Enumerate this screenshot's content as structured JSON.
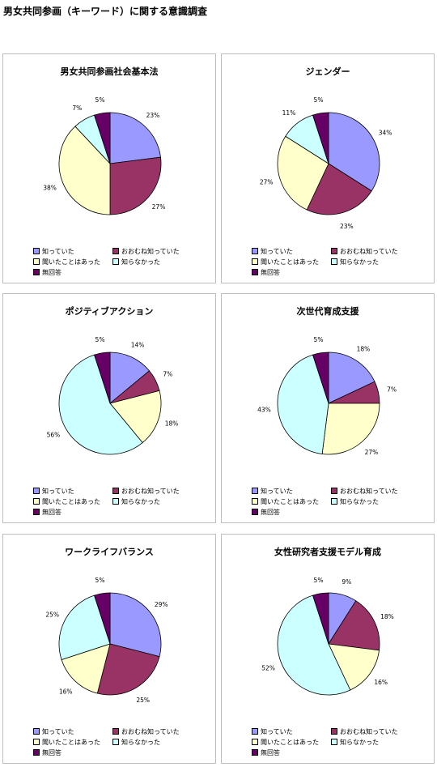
{
  "page": {
    "title": "男女共同参画（キーワード）に関する意識調査"
  },
  "legend_labels": [
    "知っていた",
    "おおむね知っていた",
    "聞いたことはあった",
    "知らなかった",
    "無回答"
  ],
  "colors": [
    "#9999ff",
    "#993366",
    "#ffffcc",
    "#ccffff",
    "#660066"
  ],
  "chart_data": [
    {
      "type": "pie",
      "title": "男女共同参画社会基本法",
      "categories": [
        "知っていた",
        "おおむね知っていた",
        "聞いたことはあった",
        "知らなかった",
        "無回答"
      ],
      "values": [
        23,
        27,
        38,
        7,
        5
      ],
      "data_labels": [
        "23%",
        "27%",
        "38%",
        "7%",
        "5%"
      ],
      "legend": "bottom"
    },
    {
      "type": "pie",
      "title": "ジェンダー",
      "categories": [
        "知っていた",
        "おおむね知っていた",
        "聞いたことはあった",
        "知らなかった",
        "無回答"
      ],
      "values": [
        34,
        23,
        27,
        11,
        5
      ],
      "data_labels": [
        "34%",
        "23%",
        "27%",
        "11%",
        "5%"
      ],
      "legend": "bottom"
    },
    {
      "type": "pie",
      "title": "ポジティブアクション",
      "categories": [
        "知っていた",
        "おおむね知っていた",
        "聞いたことはあった",
        "知らなかった",
        "無回答"
      ],
      "values": [
        14,
        7,
        18,
        56,
        5
      ],
      "data_labels": [
        "14%",
        "7%",
        "18%",
        "56%",
        "5%"
      ],
      "legend": "bottom"
    },
    {
      "type": "pie",
      "title": "次世代育成支援",
      "categories": [
        "知っていた",
        "おおむね知っていた",
        "聞いたことはあった",
        "知らなかった",
        "無回答"
      ],
      "values": [
        18,
        7,
        27,
        43,
        5
      ],
      "data_labels": [
        "18%",
        "7%",
        "27%",
        "43%",
        "5%"
      ],
      "legend": "bottom"
    },
    {
      "type": "pie",
      "title": "ワークライフバランス",
      "categories": [
        "知っていた",
        "おおむね知っていた",
        "聞いたことはあった",
        "知らなかった",
        "無回答"
      ],
      "values": [
        29,
        25,
        16,
        25,
        5
      ],
      "data_labels": [
        "29%",
        "25%",
        "16%",
        "25%",
        "5%"
      ],
      "legend": "bottom"
    },
    {
      "type": "pie",
      "title": "女性研究者支援モデル育成",
      "categories": [
        "知っていた",
        "おおむね知っていた",
        "聞いたことはあった",
        "知らなかった",
        "無回答"
      ],
      "values": [
        9,
        18,
        16,
        52,
        5
      ],
      "data_labels": [
        "9%",
        "18%",
        "16%",
        "52%",
        "5%"
      ],
      "legend": "bottom"
    }
  ]
}
